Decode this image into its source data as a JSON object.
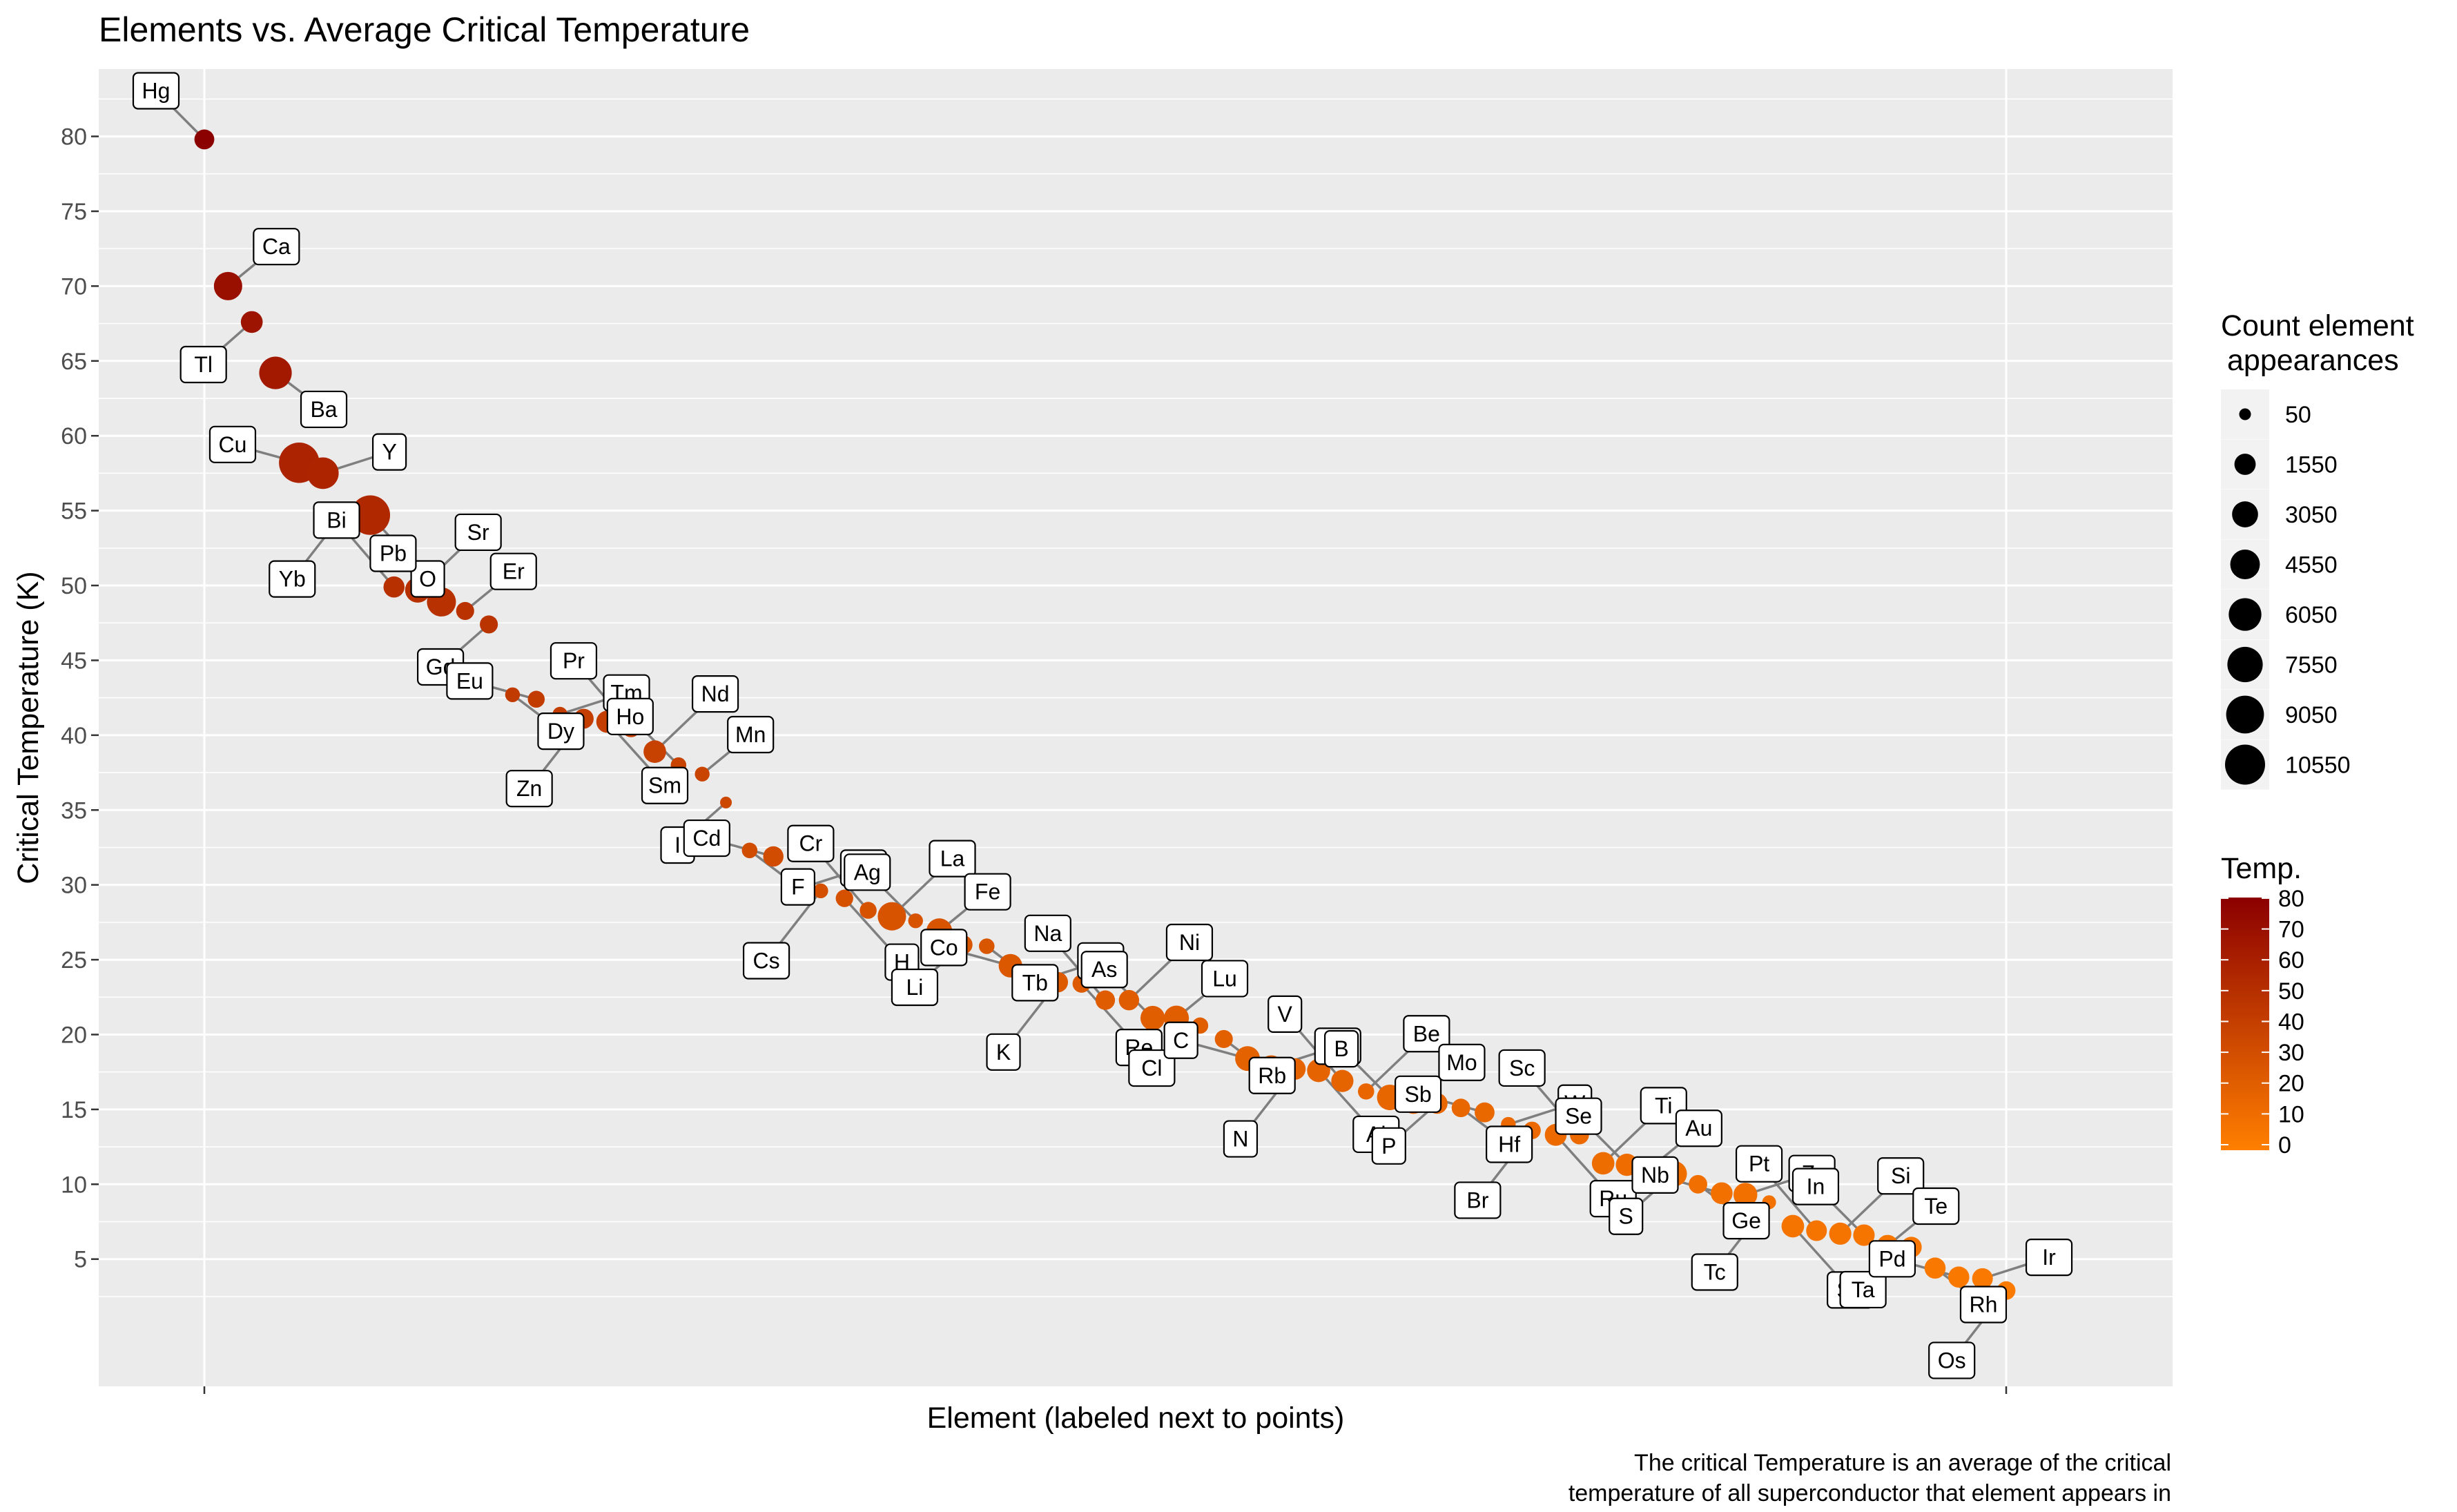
{
  "chart_data": {
    "type": "scatter",
    "title": "Elements vs. Average Critical Temperature",
    "xlabel": "Element (labeled next to points)",
    "ylabel": "Critical Temperature (K)",
    "ylim": [
      -3.5,
      84.5
    ],
    "y_ticks": [
      5,
      10,
      15,
      20,
      25,
      30,
      35,
      40,
      45,
      50,
      55,
      60,
      65,
      70,
      75,
      80
    ],
    "grid": true,
    "caption": [
      "The critical Temperature is an average of the critical",
      "temperature of all superconductor that element appears in"
    ],
    "legend_position": "right",
    "size_legend": {
      "title": [
        "Count element",
        "appearances"
      ],
      "breaks": [
        50,
        1550,
        3050,
        4550,
        6050,
        7550,
        9050,
        10550
      ]
    },
    "color_legend": {
      "title": "Temp.",
      "breaks": [
        0,
        10,
        20,
        30,
        40,
        50,
        60,
        70,
        80
      ],
      "low_color": "#FF7F00",
      "high_color": "#8B0000"
    },
    "points": [
      {
        "label": "Hg",
        "x": 1,
        "y": 79.8,
        "count": 1200
      },
      {
        "label": "Ca",
        "x": 2,
        "y": 70.0,
        "count": 4000
      },
      {
        "label": "Tl",
        "x": 3,
        "y": 67.6,
        "count": 1700
      },
      {
        "label": "Ba",
        "x": 4,
        "y": 64.2,
        "count": 6000
      },
      {
        "label": "Cu",
        "x": 5,
        "y": 58.2,
        "count": 10800
      },
      {
        "label": "Y",
        "x": 6,
        "y": 57.5,
        "count": 5500
      },
      {
        "label": "Yb",
        "x": 7,
        "y": 55.1,
        "count": 200
      },
      {
        "label": "O",
        "x": 8,
        "y": 54.7,
        "count": 10200
      },
      {
        "label": "Bi",
        "x": 9,
        "y": 49.9,
        "count": 1500
      },
      {
        "label": "Sr",
        "x": 10,
        "y": 49.7,
        "count": 2800
      },
      {
        "label": "Pb",
        "x": 11,
        "y": 48.9,
        "count": 4300
      },
      {
        "label": "Er",
        "x": 12,
        "y": 48.3,
        "count": 800
      },
      {
        "label": "Gd",
        "x": 13,
        "y": 47.4,
        "count": 800
      },
      {
        "label": "Dy",
        "x": 14,
        "y": 42.7,
        "count": 300
      },
      {
        "label": "Eu",
        "x": 15,
        "y": 42.4,
        "count": 600
      },
      {
        "label": "Tm",
        "x": 16,
        "y": 41.4,
        "count": 300
      },
      {
        "label": "Zn",
        "x": 17,
        "y": 41.1,
        "count": 1200
      },
      {
        "label": "Sm",
        "x": 18,
        "y": 40.9,
        "count": 1800
      },
      {
        "label": "Pr",
        "x": 19,
        "y": 40.5,
        "count": 1000
      },
      {
        "label": "Nd",
        "x": 20,
        "y": 38.9,
        "count": 1900
      },
      {
        "label": "Ho",
        "x": 21,
        "y": 38.0,
        "count": 400
      },
      {
        "label": "Mn",
        "x": 22,
        "y": 37.4,
        "count": 300
      },
      {
        "label": "I",
        "x": 23,
        "y": 35.5,
        "count": 50
      },
      {
        "label": "F",
        "x": 24,
        "y": 32.3,
        "count": 400
      },
      {
        "label": "Cd",
        "x": 25,
        "y": 31.9,
        "count": 1300
      },
      {
        "label": "Mg",
        "x": 26,
        "y": 29.7,
        "count": 1500
      },
      {
        "label": "Cs",
        "x": 27,
        "y": 29.6,
        "count": 300
      },
      {
        "label": "H",
        "x": 28,
        "y": 29.1,
        "count": 700
      },
      {
        "label": "Cr",
        "x": 29,
        "y": 28.3,
        "count": 600
      },
      {
        "label": "La",
        "x": 30,
        "y": 27.9,
        "count": 4000
      },
      {
        "label": "Ag",
        "x": 31,
        "y": 27.6,
        "count": 300
      },
      {
        "label": "Fe",
        "x": 32,
        "y": 26.9,
        "count": 3000
      },
      {
        "label": "Li",
        "x": 33,
        "y": 26.0,
        "count": 1000
      },
      {
        "label": "Tb",
        "x": 34,
        "y": 25.9,
        "count": 400
      },
      {
        "label": "Co",
        "x": 35,
        "y": 24.6,
        "count": 2200
      },
      {
        "label": "Ga",
        "x": 36,
        "y": 23.5,
        "count": 1000
      },
      {
        "label": "K",
        "x": 37,
        "y": 23.5,
        "count": 1300
      },
      {
        "label": "Re",
        "x": 38,
        "y": 23.4,
        "count": 800
      },
      {
        "label": "Na",
        "x": 39,
        "y": 22.3,
        "count": 1100
      },
      {
        "label": "Ni",
        "x": 40,
        "y": 22.3,
        "count": 1300
      },
      {
        "label": "As",
        "x": 41,
        "y": 21.1,
        "count": 2500
      },
      {
        "label": "Lu",
        "x": 42,
        "y": 21.1,
        "count": 2700
      },
      {
        "label": "Cl",
        "x": 43,
        "y": 20.6,
        "count": 500
      },
      {
        "label": "Rb",
        "x": 44,
        "y": 19.7,
        "count": 800
      },
      {
        "label": "C",
        "x": 45,
        "y": 18.4,
        "count": 2600
      },
      {
        "label": "Ce",
        "x": 46,
        "y": 17.8,
        "count": 2500
      },
      {
        "label": "N",
        "x": 47,
        "y": 17.7,
        "count": 1600
      },
      {
        "label": "Al",
        "x": 48,
        "y": 17.6,
        "count": 2100
      },
      {
        "label": "V",
        "x": 49,
        "y": 16.9,
        "count": 1800
      },
      {
        "label": "Be",
        "x": 50,
        "y": 16.2,
        "count": 500
      },
      {
        "label": "B",
        "x": 51,
        "y": 15.8,
        "count": 2900
      },
      {
        "label": "Mo",
        "x": 52,
        "y": 15.5,
        "count": 2300
      },
      {
        "label": "P",
        "x": 53,
        "y": 15.4,
        "count": 1400
      },
      {
        "label": "Hf",
        "x": 54,
        "y": 15.1,
        "count": 900
      },
      {
        "label": "Sb",
        "x": 55,
        "y": 14.8,
        "count": 1200
      },
      {
        "label": "W",
        "x": 56,
        "y": 14.0,
        "count": 300
      },
      {
        "label": "Br",
        "x": 57,
        "y": 13.6,
        "count": 700
      },
      {
        "label": "Ru",
        "x": 58,
        "y": 13.3,
        "count": 1700
      },
      {
        "label": "Sc",
        "x": 59,
        "y": 13.3,
        "count": 1000
      },
      {
        "label": "Ti",
        "x": 60,
        "y": 11.4,
        "count": 1900
      },
      {
        "label": "Se",
        "x": 61,
        "y": 11.3,
        "count": 1800
      },
      {
        "label": "Au",
        "x": 62,
        "y": 11.1,
        "count": 1700
      },
      {
        "label": "S",
        "x": 63,
        "y": 10.7,
        "count": 2800
      },
      {
        "label": "Ge",
        "x": 64,
        "y": 10.0,
        "count": 900
      },
      {
        "label": "Nb",
        "x": 65,
        "y": 9.4,
        "count": 1700
      },
      {
        "label": "Zr",
        "x": 66,
        "y": 9.3,
        "count": 2300
      },
      {
        "label": "Tc",
        "x": 67,
        "y": 8.8,
        "count": 200
      },
      {
        "label": "Sn",
        "x": 68,
        "y": 7.2,
        "count": 1900
      },
      {
        "label": "Pt",
        "x": 69,
        "y": 6.9,
        "count": 1400
      },
      {
        "label": "Si",
        "x": 70,
        "y": 6.7,
        "count": 1800
      },
      {
        "label": "In",
        "x": 71,
        "y": 6.6,
        "count": 1600
      },
      {
        "label": "Te",
        "x": 72,
        "y": 5.9,
        "count": 1600
      },
      {
        "label": "Ta",
        "x": 73,
        "y": 5.8,
        "count": 1400
      },
      {
        "label": "Rh",
        "x": 74,
        "y": 4.4,
        "count": 1500
      },
      {
        "label": "Pd",
        "x": 75,
        "y": 3.8,
        "count": 1500
      },
      {
        "label": "Ir",
        "x": 76,
        "y": 3.7,
        "count": 1400
      },
      {
        "label": "Os",
        "x": 77,
        "y": 2.9,
        "count": 900
      }
    ]
  }
}
